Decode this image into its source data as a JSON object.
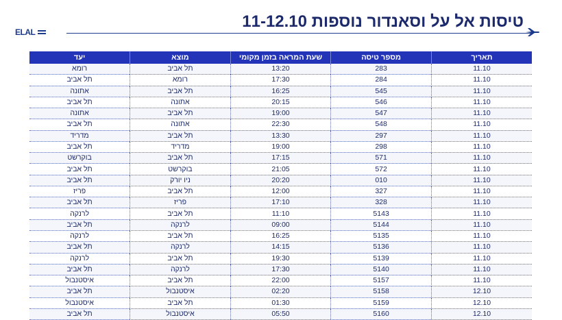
{
  "header": {
    "title": "טיסות אל על וסאנדור נוספות 11-12.10",
    "logo_text": "ELAL",
    "plane_icon": "plane-icon"
  },
  "table": {
    "columns": [
      "תאריך",
      "מספר טיסה",
      "שעת המראה בזמן מקומי",
      "מוצא",
      "יעד"
    ],
    "rows": [
      [
        "11.10",
        "283",
        "13:20",
        "תל אביב",
        "רומא"
      ],
      [
        "11.10",
        "284",
        "17:30",
        "רומא",
        "תל אביב"
      ],
      [
        "11.10",
        "545",
        "16:25",
        "תל אביב",
        "אתונה"
      ],
      [
        "11.10",
        "546",
        "20:15",
        "אתונה",
        "תל אביב"
      ],
      [
        "11.10",
        "547",
        "19:00",
        "תל אביב",
        "אתונה"
      ],
      [
        "11.10",
        "548",
        "22:30",
        "אתונה",
        "תל אביב"
      ],
      [
        "11.10",
        "297",
        "13:30",
        "תל אביב",
        "מדריד"
      ],
      [
        "11.10",
        "298",
        "19:00",
        "מדריד",
        "תל אביב"
      ],
      [
        "11.10",
        "571",
        "17:15",
        "תל אביב",
        "בוקרשט"
      ],
      [
        "11.10",
        "572",
        "21:05",
        "בוקרשט",
        "תל אביב"
      ],
      [
        "11.10",
        "010",
        "20:20",
        "ניו יורק",
        "תל אביב"
      ],
      [
        "11.10",
        "327",
        "12:00",
        "תל אביב",
        "פריז"
      ],
      [
        "11.10",
        "328",
        "17:10",
        "פריז",
        "תל אביב"
      ],
      [
        "11.10",
        "5143",
        "11:10",
        "תל אביב",
        "לרנקה"
      ],
      [
        "11.10",
        "5144",
        "09:00",
        "לרנקה",
        "תל אביב"
      ],
      [
        "11.10",
        "5135",
        "16:25",
        "תל אביב",
        "לרנקה"
      ],
      [
        "11.10",
        "5136",
        "14:15",
        "לרנקה",
        "תל אביב"
      ],
      [
        "11.10",
        "5139",
        "19:30",
        "תל אביב",
        "לרנקה"
      ],
      [
        "11.10",
        "5140",
        "17:30",
        "לרנקה",
        "תל אביב"
      ],
      [
        "11.10",
        "5157",
        "22:00",
        "תל אביב",
        "איסטנבול"
      ],
      [
        "12.10",
        "5158",
        "02:20",
        "איסטנבול",
        "תל אביב"
      ],
      [
        "12.10",
        "5159",
        "01:30",
        "תל אביב",
        "איסטנבול"
      ],
      [
        "12.10",
        "5160",
        "05:50",
        "איסטנבול",
        "תל אביב"
      ]
    ]
  },
  "colors": {
    "header_bg": "#2334b8",
    "text": "#1c2a6b",
    "accent": "#1b3a8c"
  }
}
